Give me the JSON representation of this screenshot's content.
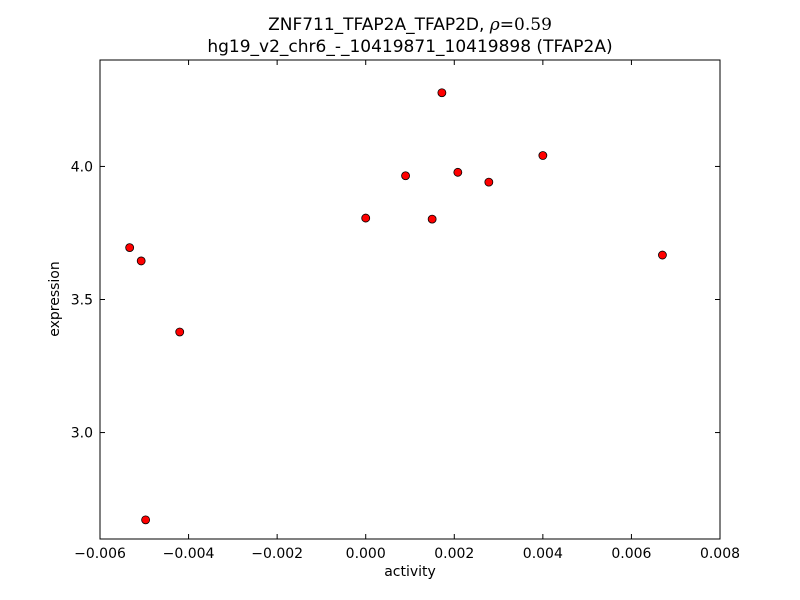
{
  "chart_data": {
    "type": "scatter",
    "title": {
      "line1_prefix": "ZNF711_TFAP2A_TFAP2D, ",
      "rho_symbol": "ρ",
      "rho_equals": "=",
      "rho_value": "0.59",
      "line2": "hg19_v2_chr6_-_10419871_10419898 (TFAP2A)"
    },
    "xlabel": "activity",
    "ylabel": "expression",
    "xlim": [
      -0.006,
      0.008
    ],
    "ylim": [
      2.6,
      4.4
    ],
    "x_ticks": [
      -0.006,
      -0.004,
      -0.002,
      0.0,
      0.002,
      0.004,
      0.006,
      0.008
    ],
    "x_tick_labels": [
      "−0.006",
      "−0.004",
      "−0.002",
      "0.000",
      "0.002",
      "0.004",
      "0.006",
      "0.008"
    ],
    "y_ticks": [
      3.0,
      3.5,
      4.0
    ],
    "y_tick_labels": [
      "3.0",
      "3.5",
      "4.0"
    ],
    "grid": false,
    "marker_color": "#ff0000",
    "marker_edge_color": "#000000",
    "points": [
      {
        "x": -0.00533,
        "y": 3.695
      },
      {
        "x": -0.00507,
        "y": 3.645
      },
      {
        "x": -0.00497,
        "y": 2.672
      },
      {
        "x": -0.0042,
        "y": 3.378
      },
      {
        "x": 0.0,
        "y": 3.806
      },
      {
        "x": 0.0009,
        "y": 3.965
      },
      {
        "x": 0.0015,
        "y": 3.802
      },
      {
        "x": 0.00172,
        "y": 4.277
      },
      {
        "x": 0.00208,
        "y": 3.978
      },
      {
        "x": 0.00278,
        "y": 3.941
      },
      {
        "x": 0.004,
        "y": 4.041
      },
      {
        "x": 0.0067,
        "y": 3.667
      }
    ]
  }
}
